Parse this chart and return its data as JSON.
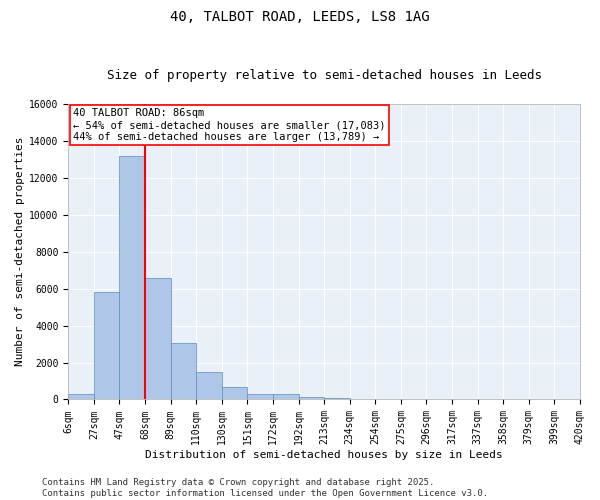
{
  "title_line1": "40, TALBOT ROAD, LEEDS, LS8 1AG",
  "title_line2": "Size of property relative to semi-detached houses in Leeds",
  "xlabel": "Distribution of semi-detached houses by size in Leeds",
  "ylabel": "Number of semi-detached properties",
  "bin_labels": [
    "6sqm",
    "27sqm",
    "47sqm",
    "68sqm",
    "89sqm",
    "110sqm",
    "130sqm",
    "151sqm",
    "172sqm",
    "192sqm",
    "213sqm",
    "234sqm",
    "254sqm",
    "275sqm",
    "296sqm",
    "317sqm",
    "337sqm",
    "358sqm",
    "379sqm",
    "399sqm",
    "420sqm"
  ],
  "bar_values": [
    300,
    5800,
    13200,
    6600,
    3050,
    1500,
    650,
    320,
    270,
    130,
    80,
    0,
    0,
    0,
    0,
    0,
    0,
    0,
    0,
    0
  ],
  "bar_color": "#aec6e8",
  "bar_edge_color": "#5a8fc0",
  "vline_color": "red",
  "vline_index": 3,
  "annotation_text": "40 TALBOT ROAD: 86sqm\n← 54% of semi-detached houses are smaller (17,083)\n44% of semi-detached houses are larger (13,789) →",
  "annotation_box_color": "white",
  "annotation_box_edge": "red",
  "ylim": [
    0,
    16000
  ],
  "yticks": [
    0,
    2000,
    4000,
    6000,
    8000,
    10000,
    12000,
    14000,
    16000
  ],
  "background_color": "#eaf0f8",
  "footer_text": "Contains HM Land Registry data © Crown copyright and database right 2025.\nContains public sector information licensed under the Open Government Licence v3.0.",
  "title_fontsize": 10,
  "subtitle_fontsize": 9,
  "axis_label_fontsize": 8,
  "tick_fontsize": 7,
  "annotation_fontsize": 7.5,
  "footer_fontsize": 6.5
}
